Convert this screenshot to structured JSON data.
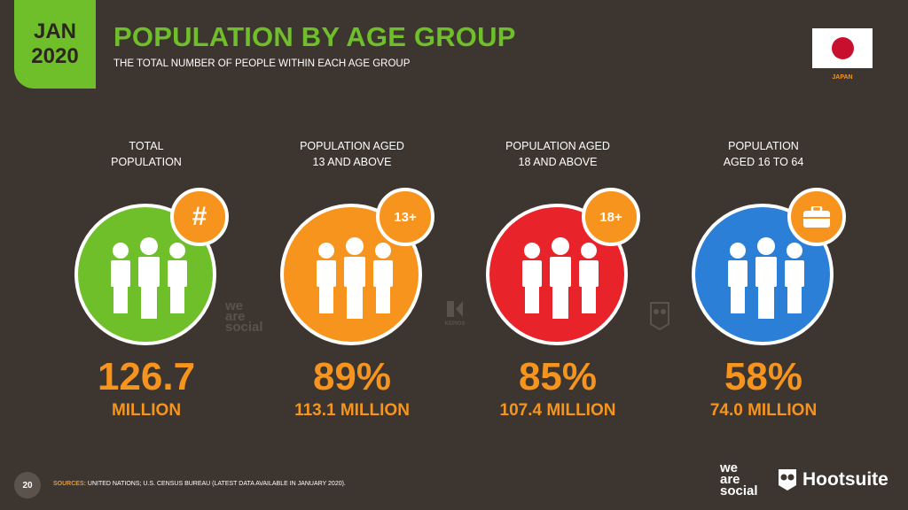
{
  "header": {
    "month": "JAN",
    "year": "2020",
    "title": "POPULATION BY AGE GROUP",
    "subtitle": "THE TOTAL NUMBER OF PEOPLE WITHIN EACH AGE GROUP",
    "country": "JAPAN"
  },
  "colors": {
    "background": "#3d352f",
    "green": "#6fbf2a",
    "orange": "#f7941d",
    "red": "#e8242a",
    "blue": "#2b7fd7"
  },
  "stats": [
    {
      "label_line1": "TOTAL",
      "label_line2": "POPULATION",
      "badge": "#",
      "badge_icon": "hash-icon",
      "value": "126.7",
      "sub": "MILLION",
      "color": "#6fbf2a"
    },
    {
      "label_line1": "POPULATION AGED",
      "label_line2": "13 AND ABOVE",
      "badge": "13+",
      "value": "89%",
      "sub": "113.1 MILLION",
      "color": "#f7941d"
    },
    {
      "label_line1": "POPULATION AGED",
      "label_line2": "18 AND ABOVE",
      "badge": "18+",
      "value": "85%",
      "sub": "107.4 MILLION",
      "color": "#e8242a"
    },
    {
      "label_line1": "POPULATION",
      "label_line2": "AGED 16 TO 64",
      "badge": "",
      "badge_icon": "briefcase-icon",
      "value": "58%",
      "sub": "74.0 MILLION",
      "color": "#2b7fd7"
    }
  ],
  "watermarks": {
    "we_are_social": [
      "we",
      "are",
      "social"
    ],
    "kepios": "KEPIOS"
  },
  "footer": {
    "page": "20",
    "sources_label": "SOURCES:",
    "sources_text": "UNITED NATIONS; U.S. CENSUS BUREAU (LATEST DATA AVAILABLE IN JANUARY 2020).",
    "logo_was": [
      "we",
      "are",
      "social"
    ],
    "logo_hootsuite": "Hootsuite"
  }
}
